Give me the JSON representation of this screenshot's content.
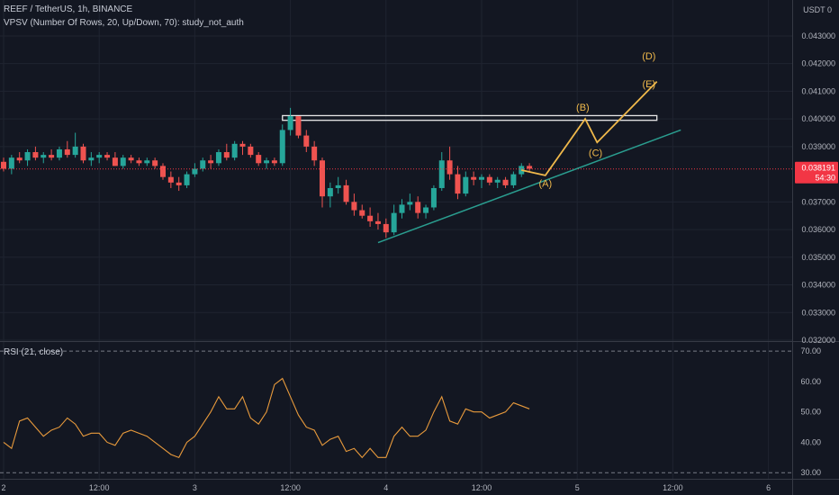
{
  "header": {
    "symbol_line": "REEF / TetherUS, 1h, BINANCE",
    "indicator_line": "VPSV (Number Of Rows, 20, Up/Down, 70): study_not_auth",
    "rsi_label": "RSI (21, close)",
    "currency": "USDT",
    "currency_suffix": "0"
  },
  "price_axis": {
    "ticks": [
      {
        "value": 0.043,
        "label": "0.043000"
      },
      {
        "value": 0.042,
        "label": "0.042000"
      },
      {
        "value": 0.041,
        "label": "0.041000"
      },
      {
        "value": 0.04,
        "label": "0.040000"
      },
      {
        "value": 0.039,
        "label": "0.039000"
      },
      {
        "value": 0.037,
        "label": "0.037000"
      },
      {
        "value": 0.036,
        "label": "0.036000"
      },
      {
        "value": 0.035,
        "label": "0.035000"
      },
      {
        "value": 0.034,
        "label": "0.034000"
      },
      {
        "value": 0.033,
        "label": "0.033000"
      },
      {
        "value": 0.032,
        "label": "0.032000"
      }
    ],
    "ylim": [
      0.032,
      0.0443
    ],
    "current_price": {
      "label": "0.038191",
      "countdown": "54:30",
      "value": 0.038191,
      "color": "#f23645"
    }
  },
  "rsi_axis": {
    "ticks": [
      {
        "value": 70,
        "label": "70.00"
      },
      {
        "value": 60,
        "label": "60.00"
      },
      {
        "value": 50,
        "label": "50.00"
      },
      {
        "value": 40,
        "label": "40.00"
      },
      {
        "value": 30,
        "label": "30.00"
      }
    ],
    "ylim": [
      28,
      73
    ]
  },
  "time_axis": {
    "labels": [
      {
        "bar": 0,
        "text": "2"
      },
      {
        "bar": 12,
        "text": "12:00"
      },
      {
        "bar": 24,
        "text": "3"
      },
      {
        "bar": 36,
        "text": "12:00"
      },
      {
        "bar": 48,
        "text": "4"
      },
      {
        "bar": 60,
        "text": "12:00"
      },
      {
        "bar": 72,
        "text": "5"
      },
      {
        "bar": 84,
        "text": "12:00"
      },
      {
        "bar": 96,
        "text": "6"
      }
    ]
  },
  "chart_data": {
    "type": "candlestick",
    "symbol": "REEF / TetherUS",
    "interval": "1h",
    "exchange": "BINANCE",
    "candles": [
      [
        0.03845,
        0.0386,
        0.0381,
        0.0382
      ],
      [
        0.0382,
        0.0387,
        0.038,
        0.0386
      ],
      [
        0.0386,
        0.0388,
        0.0384,
        0.0385
      ],
      [
        0.0385,
        0.0389,
        0.0383,
        0.0388
      ],
      [
        0.0388,
        0.039,
        0.0385,
        0.0386
      ],
      [
        0.0386,
        0.0388,
        0.0384,
        0.0387
      ],
      [
        0.0387,
        0.0389,
        0.0385,
        0.0386
      ],
      [
        0.0386,
        0.039,
        0.0385,
        0.0389
      ],
      [
        0.0389,
        0.0392,
        0.0386,
        0.0387
      ],
      [
        0.0387,
        0.0395,
        0.0386,
        0.039
      ],
      [
        0.039,
        0.0391,
        0.0384,
        0.0385
      ],
      [
        0.0385,
        0.0388,
        0.0383,
        0.0386
      ],
      [
        0.0386,
        0.0388,
        0.0384,
        0.0387
      ],
      [
        0.0387,
        0.0388,
        0.0385,
        0.0386
      ],
      [
        0.0386,
        0.0388,
        0.0383,
        0.0383
      ],
      [
        0.0383,
        0.0387,
        0.0382,
        0.0386
      ],
      [
        0.0386,
        0.0387,
        0.0384,
        0.0385
      ],
      [
        0.0385,
        0.0386,
        0.0383,
        0.0384
      ],
      [
        0.0384,
        0.0386,
        0.0383,
        0.0385
      ],
      [
        0.0385,
        0.0386,
        0.0382,
        0.0383
      ],
      [
        0.0383,
        0.0384,
        0.0378,
        0.0379
      ],
      [
        0.0379,
        0.0381,
        0.0375,
        0.0377
      ],
      [
        0.0377,
        0.0379,
        0.0374,
        0.0376
      ],
      [
        0.0376,
        0.0381,
        0.0375,
        0.038
      ],
      [
        0.038,
        0.0384,
        0.0379,
        0.0382
      ],
      [
        0.0382,
        0.0386,
        0.0381,
        0.0385
      ],
      [
        0.0385,
        0.0387,
        0.0382,
        0.0384
      ],
      [
        0.0384,
        0.0389,
        0.0383,
        0.0388
      ],
      [
        0.0388,
        0.0391,
        0.0385,
        0.0386
      ],
      [
        0.0386,
        0.0392,
        0.0385,
        0.0391
      ],
      [
        0.0391,
        0.0392,
        0.0387,
        0.039
      ],
      [
        0.039,
        0.0391,
        0.0386,
        0.0387
      ],
      [
        0.0387,
        0.0388,
        0.0383,
        0.0384
      ],
      [
        0.0384,
        0.0386,
        0.0382,
        0.0385
      ],
      [
        0.0385,
        0.0386,
        0.0383,
        0.0384
      ],
      [
        0.0384,
        0.0398,
        0.0383,
        0.0396
      ],
      [
        0.0396,
        0.0404,
        0.0394,
        0.0401
      ],
      [
        0.0401,
        0.0401,
        0.0393,
        0.0394
      ],
      [
        0.0394,
        0.0396,
        0.0388,
        0.039
      ],
      [
        0.039,
        0.0392,
        0.0383,
        0.0385
      ],
      [
        0.0385,
        0.0386,
        0.0368,
        0.0372
      ],
      [
        0.0372,
        0.0377,
        0.0368,
        0.0375
      ],
      [
        0.0375,
        0.0379,
        0.0373,
        0.0376
      ],
      [
        0.0376,
        0.0378,
        0.0369,
        0.037
      ],
      [
        0.037,
        0.0373,
        0.0365,
        0.0367
      ],
      [
        0.0367,
        0.0369,
        0.0364,
        0.0365
      ],
      [
        0.0365,
        0.0368,
        0.0361,
        0.0363
      ],
      [
        0.0363,
        0.0366,
        0.036,
        0.0362
      ],
      [
        0.0362,
        0.0364,
        0.0357,
        0.0359
      ],
      [
        0.0359,
        0.0369,
        0.0358,
        0.0366
      ],
      [
        0.0366,
        0.0371,
        0.0364,
        0.0369
      ],
      [
        0.0369,
        0.0373,
        0.0367,
        0.037
      ],
      [
        0.037,
        0.0372,
        0.0364,
        0.0366
      ],
      [
        0.0366,
        0.0369,
        0.0364,
        0.0368
      ],
      [
        0.0368,
        0.0376,
        0.0367,
        0.0375
      ],
      [
        0.0375,
        0.0388,
        0.0374,
        0.0385
      ],
      [
        0.0385,
        0.039,
        0.0378,
        0.038
      ],
      [
        0.038,
        0.0383,
        0.0371,
        0.0373
      ],
      [
        0.0373,
        0.0381,
        0.0372,
        0.0379
      ],
      [
        0.0379,
        0.0381,
        0.0376,
        0.0378
      ],
      [
        0.0378,
        0.038,
        0.0375,
        0.0379
      ],
      [
        0.0379,
        0.038,
        0.0376,
        0.0377
      ],
      [
        0.0377,
        0.0379,
        0.0375,
        0.0378
      ],
      [
        0.0378,
        0.0379,
        0.0375,
        0.0376
      ],
      [
        0.0376,
        0.0381,
        0.0375,
        0.038
      ],
      [
        0.038,
        0.0384,
        0.0379,
        0.0383
      ],
      [
        0.0383,
        0.0384,
        0.0381,
        0.0382
      ]
    ],
    "rsi": [
      40,
      38,
      47,
      48,
      45,
      42,
      44,
      45,
      48,
      46,
      42,
      43,
      43,
      40,
      39,
      43,
      44,
      43,
      42,
      40,
      38,
      36,
      35,
      40,
      42,
      46,
      50,
      55,
      51,
      51,
      55,
      48,
      46,
      50,
      59,
      61,
      55,
      49,
      45,
      44,
      39,
      41,
      42,
      37,
      38,
      35,
      38,
      35,
      35,
      42,
      45,
      42,
      42,
      44,
      50,
      55,
      47,
      46,
      51,
      50,
      50,
      48,
      49,
      50,
      53,
      52,
      51
    ],
    "resistance_zone": {
      "low": 0.03995,
      "high": 0.04012,
      "from_bar": 35,
      "to_bar": 82
    },
    "trendline": {
      "from": [
        47,
        0.03553
      ],
      "to": [
        85,
        0.0396
      ],
      "color": "#2a9d8f"
    },
    "projection": {
      "points": [
        [
          65,
          0.03815
        ],
        [
          68,
          0.03796
        ],
        [
          73,
          0.04
        ],
        [
          74.5,
          0.03915
        ],
        [
          82,
          0.04135
        ]
      ],
      "color": "#f0b94b"
    },
    "wave_labels": [
      {
        "text": "(A)",
        "bar": 68,
        "price": 0.03755
      },
      {
        "text": "(B)",
        "bar": 72.7,
        "price": 0.0403
      },
      {
        "text": "(C)",
        "bar": 74.3,
        "price": 0.03865
      },
      {
        "text": "(D)",
        "bar": 81,
        "price": 0.04215
      },
      {
        "text": "(E)",
        "bar": 81,
        "price": 0.04115
      }
    ],
    "rsi_levels": [
      70,
      30
    ],
    "colors": {
      "up": "#26a69a",
      "down": "#ef5350",
      "rsi_line": "#e89a3c",
      "background": "#131722"
    }
  }
}
